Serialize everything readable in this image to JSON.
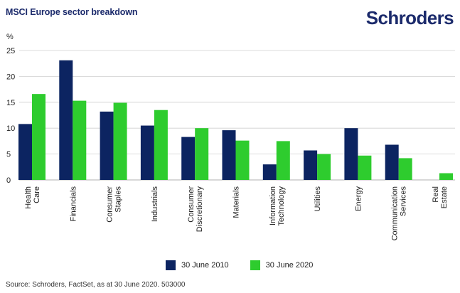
{
  "header": {
    "title": "MSCI Europe sector breakdown",
    "brand": "Schroders"
  },
  "footer": {
    "source": "Source: Schroders, FactSet, as at 30 June 2020. 503000"
  },
  "colors": {
    "series_2010": "#0c2461",
    "series_2020": "#2ecc2e",
    "grid": "#cfcfcf",
    "text": "#222222"
  },
  "chart_data": {
    "type": "bar",
    "title": "MSCI Europe sector breakdown",
    "ylabel": "%",
    "xlabel": "",
    "ylim": [
      0,
      25
    ],
    "yticks": [
      "0",
      "5",
      "10",
      "15",
      "20",
      "25"
    ],
    "grid": true,
    "legend_position": "bottom",
    "categories": [
      [
        "Health",
        "Care"
      ],
      [
        "Financials"
      ],
      [
        "Consumer",
        "Staples"
      ],
      [
        "Industrials"
      ],
      [
        "Consumer",
        "Discretionary"
      ],
      [
        "Materials"
      ],
      [
        "Information",
        "Technology"
      ],
      [
        "Utilities"
      ],
      [
        "Energy"
      ],
      [
        "Communication",
        "Services"
      ],
      [
        "Real",
        "Estate"
      ]
    ],
    "series": [
      {
        "name": "30 June 2010",
        "values": [
          10.8,
          23.1,
          13.2,
          10.5,
          8.3,
          9.6,
          3.0,
          5.7,
          10.0,
          6.8,
          0
        ]
      },
      {
        "name": "30 June 2020",
        "values": [
          16.6,
          15.3,
          14.9,
          13.5,
          10.0,
          7.6,
          7.5,
          5.0,
          4.7,
          4.2,
          1.3
        ]
      }
    ]
  }
}
